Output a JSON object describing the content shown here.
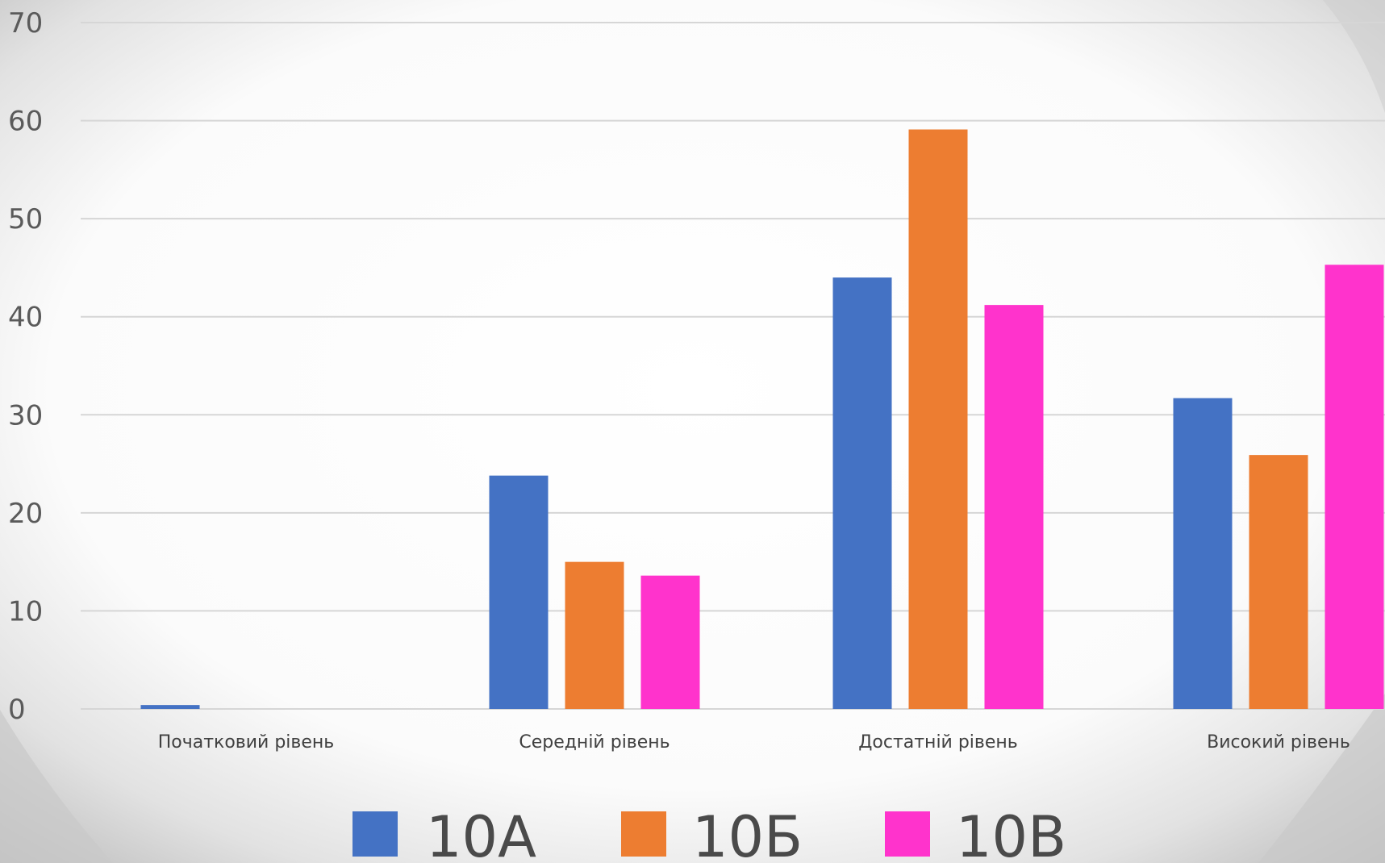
{
  "colors": {
    "series_10a": "#4472C4",
    "series_10b": "#ED7D31",
    "series_10v": "#FF33CC",
    "gridline": "#d6d6d6",
    "background_center": "#ffffff",
    "background_edge": "#bdbdbd"
  },
  "chart_data": {
    "type": "bar",
    "title": "",
    "xlabel": "",
    "ylabel": "",
    "ylim": [
      0,
      70
    ],
    "y_ticks": [
      "0",
      "10",
      "20",
      "30",
      "40",
      "50",
      "60",
      "70"
    ],
    "categories": [
      "Початковий рівень",
      "Середній рівень",
      "Достатній рівень",
      "Високий рівень"
    ],
    "series": [
      {
        "name": "10А",
        "values": [
          0.4,
          23.8,
          44.0,
          31.7
        ]
      },
      {
        "name": "10Б",
        "values": [
          0,
          15.0,
          59.1,
          25.9
        ]
      },
      {
        "name": "10В",
        "values": [
          0,
          13.6,
          41.2,
          45.3
        ]
      }
    ],
    "grid": true,
    "legend": "bottom"
  }
}
